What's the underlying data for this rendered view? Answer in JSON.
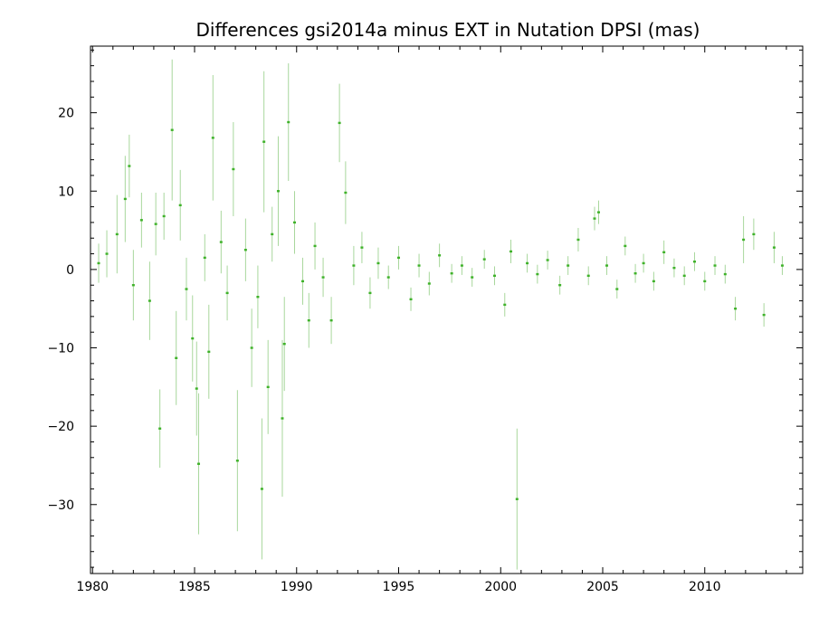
{
  "chart_data": {
    "type": "scatter",
    "title": "Differences gsi2014a minus EXT in Nutation DPSI (mas)",
    "xlabel": "",
    "ylabel": "",
    "xlim": [
      1979.9,
      2014.8
    ],
    "ylim": [
      -38.8,
      28.5
    ],
    "x_ticks": [
      1980,
      1985,
      1990,
      1995,
      2000,
      2005,
      2010
    ],
    "x_tick_labels": [
      "1980",
      "1985",
      "1990",
      "1995",
      "2000",
      "2005",
      "2010"
    ],
    "y_ticks": [
      -30,
      -20,
      -10,
      0,
      10,
      20
    ],
    "y_tick_labels": [
      "−30",
      "−20",
      "−10",
      "0",
      "10",
      "20"
    ],
    "grid": false,
    "series": [
      {
        "color": "#3fb22a",
        "errorbar_color": "#a8d79c",
        "points": [
          {
            "x": 1980.3,
            "y": 0.8,
            "err": 2.5
          },
          {
            "x": 1980.7,
            "y": 2.0,
            "err": 3.0
          },
          {
            "x": 1981.2,
            "y": 4.5,
            "err": 5.0
          },
          {
            "x": 1981.6,
            "y": 9.0,
            "err": 5.5
          },
          {
            "x": 1981.8,
            "y": 13.2,
            "err": 4.0
          },
          {
            "x": 1982.0,
            "y": -2.0,
            "err": 4.5
          },
          {
            "x": 1982.4,
            "y": 6.3,
            "err": 3.5
          },
          {
            "x": 1982.8,
            "y": -4.0,
            "err": 5.0
          },
          {
            "x": 1983.1,
            "y": 5.8,
            "err": 4.0
          },
          {
            "x": 1983.3,
            "y": -20.3,
            "err": 5.0
          },
          {
            "x": 1983.5,
            "y": 6.8,
            "err": 3.0
          },
          {
            "x": 1983.9,
            "y": 17.8,
            "err": 9.0
          },
          {
            "x": 1984.1,
            "y": -11.3,
            "err": 6.0
          },
          {
            "x": 1984.3,
            "y": 8.2,
            "err": 4.5
          },
          {
            "x": 1984.6,
            "y": -2.5,
            "err": 4.0
          },
          {
            "x": 1984.9,
            "y": -8.8,
            "err": 5.5
          },
          {
            "x": 1985.1,
            "y": -15.2,
            "err": 6.0
          },
          {
            "x": 1985.2,
            "y": -24.8,
            "err": 9.0
          },
          {
            "x": 1985.5,
            "y": 1.5,
            "err": 3.0
          },
          {
            "x": 1985.7,
            "y": -10.5,
            "err": 6.0
          },
          {
            "x": 1985.9,
            "y": 16.8,
            "err": 8.0
          },
          {
            "x": 1986.3,
            "y": 3.5,
            "err": 4.0
          },
          {
            "x": 1986.6,
            "y": -3.0,
            "err": 3.5
          },
          {
            "x": 1986.9,
            "y": 12.8,
            "err": 6.0
          },
          {
            "x": 1987.1,
            "y": -24.4,
            "err": 9.0
          },
          {
            "x": 1987.5,
            "y": 2.5,
            "err": 4.0
          },
          {
            "x": 1987.8,
            "y": -10.0,
            "err": 5.0
          },
          {
            "x": 1988.1,
            "y": -3.5,
            "err": 4.0
          },
          {
            "x": 1988.3,
            "y": -28.0,
            "err": 9.0
          },
          {
            "x": 1988.4,
            "y": 16.3,
            "err": 9.0
          },
          {
            "x": 1988.6,
            "y": -15.0,
            "err": 6.0
          },
          {
            "x": 1988.8,
            "y": 4.5,
            "err": 3.5
          },
          {
            "x": 1989.1,
            "y": 10.0,
            "err": 7.0
          },
          {
            "x": 1989.3,
            "y": -19.0,
            "err": 10.0
          },
          {
            "x": 1989.4,
            "y": -9.5,
            "err": 6.0
          },
          {
            "x": 1989.6,
            "y": 18.8,
            "err": 7.5
          },
          {
            "x": 1989.9,
            "y": 6.0,
            "err": 4.0
          },
          {
            "x": 1990.3,
            "y": -1.5,
            "err": 3.0
          },
          {
            "x": 1990.6,
            "y": -6.5,
            "err": 3.5
          },
          {
            "x": 1990.9,
            "y": 3.0,
            "err": 3.0
          },
          {
            "x": 1991.3,
            "y": -1.0,
            "err": 2.5
          },
          {
            "x": 1991.7,
            "y": -6.5,
            "err": 3.0
          },
          {
            "x": 1992.1,
            "y": 18.7,
            "err": 5.0
          },
          {
            "x": 1992.4,
            "y": 9.8,
            "err": 4.0
          },
          {
            "x": 1992.8,
            "y": 0.5,
            "err": 2.5
          },
          {
            "x": 1993.2,
            "y": 2.8,
            "err": 2.0
          },
          {
            "x": 1993.6,
            "y": -3.0,
            "err": 2.0
          },
          {
            "x": 1994.0,
            "y": 0.8,
            "err": 2.0
          },
          {
            "x": 1994.5,
            "y": -1.0,
            "err": 1.5
          },
          {
            "x": 1995.0,
            "y": 1.5,
            "err": 1.5
          },
          {
            "x": 1995.6,
            "y": -3.8,
            "err": 1.5
          },
          {
            "x": 1996.0,
            "y": 0.5,
            "err": 1.5
          },
          {
            "x": 1996.5,
            "y": -1.8,
            "err": 1.5
          },
          {
            "x": 1997.0,
            "y": 1.8,
            "err": 1.5
          },
          {
            "x": 1997.6,
            "y": -0.5,
            "err": 1.2
          },
          {
            "x": 1998.1,
            "y": 0.5,
            "err": 1.2
          },
          {
            "x": 1998.6,
            "y": -1.0,
            "err": 1.2
          },
          {
            "x": 1999.2,
            "y": 1.3,
            "err": 1.2
          },
          {
            "x": 1999.7,
            "y": -0.8,
            "err": 1.2
          },
          {
            "x": 2000.2,
            "y": -4.5,
            "err": 1.5
          },
          {
            "x": 2000.5,
            "y": 2.3,
            "err": 1.5
          },
          {
            "x": 2000.8,
            "y": -29.3,
            "err": 9.0
          },
          {
            "x": 2001.3,
            "y": 0.8,
            "err": 1.2
          },
          {
            "x": 2001.8,
            "y": -0.6,
            "err": 1.2
          },
          {
            "x": 2002.3,
            "y": 1.2,
            "err": 1.2
          },
          {
            "x": 2002.9,
            "y": -2.0,
            "err": 1.2
          },
          {
            "x": 2003.3,
            "y": 0.5,
            "err": 1.2
          },
          {
            "x": 2003.8,
            "y": 3.8,
            "err": 1.5
          },
          {
            "x": 2004.3,
            "y": -0.8,
            "err": 1.2
          },
          {
            "x": 2004.6,
            "y": 6.5,
            "err": 1.5
          },
          {
            "x": 2004.8,
            "y": 7.3,
            "err": 1.5
          },
          {
            "x": 2005.2,
            "y": 0.5,
            "err": 1.2
          },
          {
            "x": 2005.7,
            "y": -2.5,
            "err": 1.2
          },
          {
            "x": 2006.1,
            "y": 3.0,
            "err": 1.2
          },
          {
            "x": 2006.6,
            "y": -0.5,
            "err": 1.2
          },
          {
            "x": 2007.0,
            "y": 0.8,
            "err": 1.2
          },
          {
            "x": 2007.5,
            "y": -1.5,
            "err": 1.2
          },
          {
            "x": 2008.0,
            "y": 2.2,
            "err": 1.5
          },
          {
            "x": 2008.5,
            "y": 0.2,
            "err": 1.2
          },
          {
            "x": 2009.0,
            "y": -0.8,
            "err": 1.2
          },
          {
            "x": 2009.5,
            "y": 1.0,
            "err": 1.2
          },
          {
            "x": 2010.0,
            "y": -1.5,
            "err": 1.2
          },
          {
            "x": 2010.5,
            "y": 0.5,
            "err": 1.2
          },
          {
            "x": 2011.0,
            "y": -0.6,
            "err": 1.2
          },
          {
            "x": 2011.5,
            "y": -5.0,
            "err": 1.5
          },
          {
            "x": 2011.9,
            "y": 3.8,
            "err": 3.0
          },
          {
            "x": 2012.4,
            "y": 4.5,
            "err": 2.0
          },
          {
            "x": 2012.9,
            "y": -5.8,
            "err": 1.5
          },
          {
            "x": 2013.4,
            "y": 2.8,
            "err": 2.0
          },
          {
            "x": 2013.8,
            "y": 0.5,
            "err": 1.2
          }
        ]
      }
    ]
  }
}
